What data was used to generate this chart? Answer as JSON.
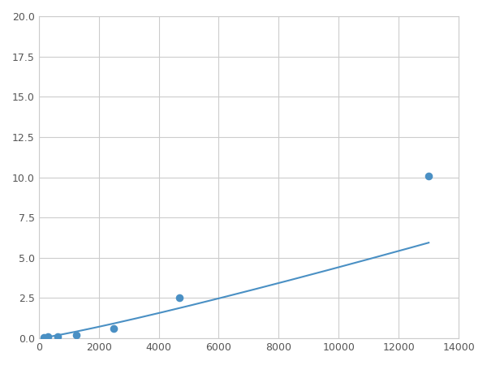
{
  "x": [
    156,
    313,
    625,
    1250,
    2500,
    4688,
    13000
  ],
  "y": [
    0.08,
    0.1,
    0.13,
    0.19,
    0.6,
    2.5,
    10.1
  ],
  "marker_indices": [
    0,
    1,
    2,
    3,
    4,
    5,
    6
  ],
  "line_color": "#4a90c4",
  "marker_color": "#4a90c4",
  "marker_size": 35,
  "xlim": [
    0,
    14000
  ],
  "ylim": [
    0,
    20
  ],
  "xticks": [
    0,
    2000,
    4000,
    6000,
    8000,
    10000,
    12000,
    14000
  ],
  "yticks": [
    0.0,
    2.5,
    5.0,
    7.5,
    10.0,
    12.5,
    15.0,
    17.5,
    20.0
  ],
  "grid_color": "#cccccc",
  "background_color": "#ffffff",
  "figsize": [
    6.0,
    4.5
  ],
  "dpi": 100
}
